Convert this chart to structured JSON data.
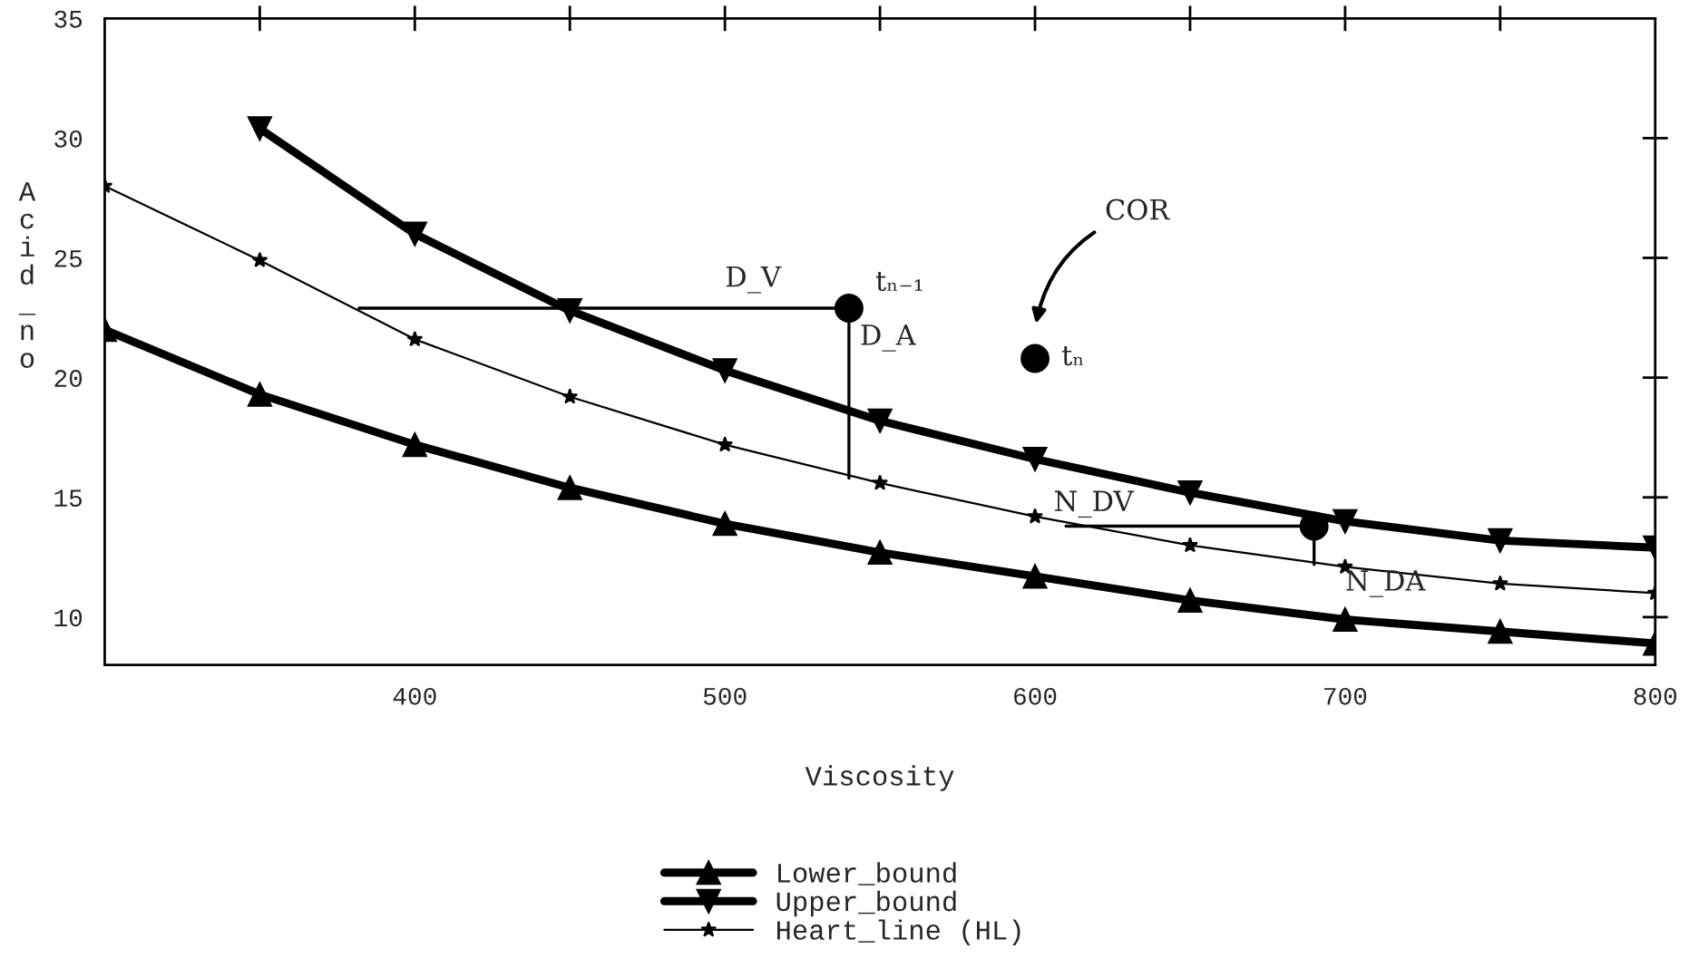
{
  "chart_data": {
    "type": "line",
    "xlabel": "Viscosity",
    "ylabel": "Acid_no",
    "xlim": [
      300,
      800
    ],
    "ylim": [
      8,
      35
    ],
    "xticks": [
      {
        "value": 350,
        "label": null
      },
      400,
      {
        "value": 450,
        "label": null
      },
      500,
      {
        "value": 550,
        "label": null
      },
      600,
      {
        "value": 650,
        "label": null
      },
      700,
      {
        "value": 750,
        "label": null
      },
      800
    ],
    "yticks": [
      10,
      15,
      20,
      25,
      30,
      35
    ],
    "grid": false,
    "legend": "bottom",
    "series": [
      {
        "name": "Lower_bound",
        "color": "#000000",
        "marker": "triangle",
        "x": [
          300,
          350,
          400,
          450,
          500,
          550,
          600,
          650,
          700,
          750,
          800
        ],
        "values": [
          22,
          19.3,
          17.2,
          15.4,
          13.9,
          12.7,
          11.7,
          10.7,
          9.9,
          9.4,
          8.9
        ]
      },
      {
        "name": "Upper_bound",
        "color": "#000000",
        "marker": "triangle_down",
        "x": [
          350,
          400,
          450,
          500,
          550,
          600,
          650,
          700,
          750,
          800
        ],
        "values": [
          30.4,
          26,
          22.8,
          20.3,
          18.2,
          16.6,
          15.2,
          14.0,
          13.2,
          12.9
        ]
      },
      {
        "name": "Heart_line (HL)",
        "color": "#000000",
        "marker": "star",
        "x": [
          300,
          350,
          400,
          450,
          500,
          550,
          600,
          650,
          700,
          750,
          800
        ],
        "values": [
          28,
          24.9,
          21.6,
          19.2,
          17.2,
          15.6,
          14.2,
          13.0,
          12.1,
          11.4,
          11.0
        ]
      },
      {
        "type": "line",
        "color": "#000000",
        "marker": "none",
        "x": [
          382,
          540
        ],
        "values": [
          22.9,
          22.9
        ]
      },
      {
        "type": "line",
        "color": "#000000",
        "marker": "none",
        "x": [
          540,
          540
        ],
        "values": [
          22.9,
          15.8
        ]
      },
      {
        "type": "line",
        "color": "#000000",
        "marker": "none",
        "x": [
          610,
          690
        ],
        "values": [
          13.8,
          13.8
        ]
      },
      {
        "type": "line",
        "color": "#000000",
        "marker": "none",
        "x": [
          690,
          690
        ],
        "values": [
          13.8,
          12.2
        ]
      },
      {
        "type": "scatter",
        "color": "#000000",
        "marker": "circle",
        "x": [
          540,
          600,
          690
        ],
        "values": [
          22.9,
          20.8,
          13.8
        ]
      }
    ],
    "annotations": [
      "D_V",
      "tₙ₋₁",
      "D_A",
      "COR",
      "tₙ",
      "N_DV",
      "N_DA"
    ]
  }
}
